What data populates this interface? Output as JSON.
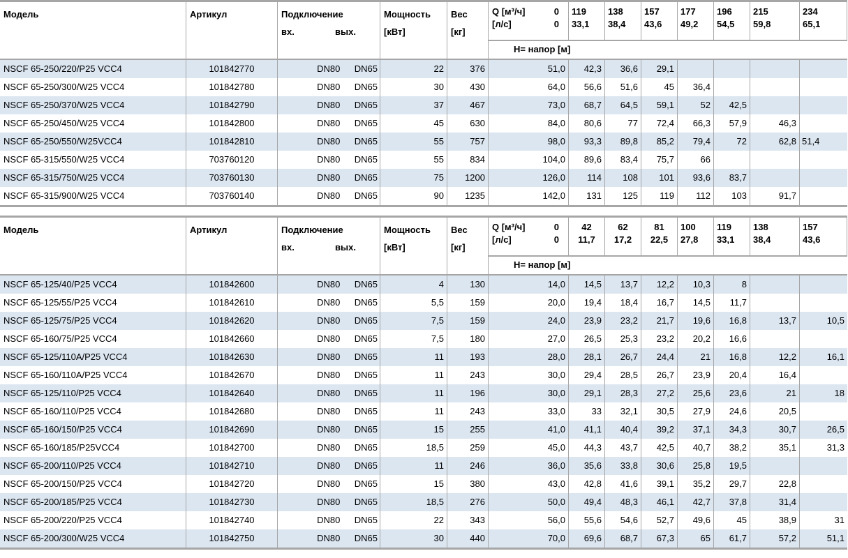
{
  "colors": {
    "row_alt_background": "#dce6f1",
    "grid_line": "#a6a6a6",
    "text": "#000000",
    "page_background": "#ffffff"
  },
  "tables": [
    {
      "header": {
        "model": "Модель",
        "article": "Артикул",
        "connection": "Подключение",
        "conn_in": "вх.",
        "conn_out": "вых.",
        "power_line1": "Мощность",
        "power_line2": "[кВт]",
        "weight_line1": "Вес",
        "weight_line2": "[кг]",
        "q_line1": "Q [м³/ч]",
        "q_line1_value": "0",
        "q_line2": "[л/с]",
        "q_line2_value": "0",
        "q_cols": [
          {
            "m3h": "119",
            "ls": "33,1"
          },
          {
            "m3h": "138",
            "ls": "38,4"
          },
          {
            "m3h": "157",
            "ls": "43,6"
          },
          {
            "m3h": "177",
            "ls": "49,2"
          },
          {
            "m3h": "196",
            "ls": "54,5"
          },
          {
            "m3h": "215",
            "ls": "59,8"
          },
          {
            "m3h": "234",
            "ls": "65,1"
          }
        ],
        "h_row_label": "Н= напор [м]"
      },
      "last_col_align": "left",
      "rows": [
        {
          "model": "NSCF 65-250/220/P25 VCC4",
          "article": "101842770",
          "dn_in": "DN80",
          "dn_out": "DN65",
          "power": "22",
          "weight": "376",
          "h": [
            "51,0",
            "42,3",
            "36,6",
            "29,1",
            "",
            "",
            "",
            ""
          ]
        },
        {
          "model": "NSCF 65-250/300/W25 VCC4",
          "article": "101842780",
          "dn_in": "DN80",
          "dn_out": "DN65",
          "power": "30",
          "weight": "430",
          "h": [
            "64,0",
            "56,6",
            "51,6",
            "45",
            "36,4",
            "",
            "",
            ""
          ]
        },
        {
          "model": "NSCF 65-250/370/W25 VCC4",
          "article": "101842790",
          "dn_in": "DN80",
          "dn_out": "DN65",
          "power": "37",
          "weight": "467",
          "h": [
            "73,0",
            "68,7",
            "64,5",
            "59,1",
            "52",
            "42,5",
            "",
            ""
          ]
        },
        {
          "model": "NSCF 65-250/450/W25 VCC4",
          "article": "101842800",
          "dn_in": "DN80",
          "dn_out": "DN65",
          "power": "45",
          "weight": "630",
          "h": [
            "84,0",
            "80,6",
            "77",
            "72,4",
            "66,3",
            "57,9",
            "46,3",
            ""
          ]
        },
        {
          "model": "NSCF 65-250/550/W25VCC4",
          "article": "101842810",
          "dn_in": "DN80",
          "dn_out": "DN65",
          "power": "55",
          "weight": "757",
          "h": [
            "98,0",
            "93,3",
            "89,8",
            "85,2",
            "79,4",
            "72",
            "62,8",
            "51,4"
          ]
        },
        {
          "model": "NSCF 65-315/550/W25 VCC4",
          "article": "703760120",
          "dn_in": "DN80",
          "dn_out": "DN65",
          "power": "55",
          "weight": "834",
          "h": [
            "104,0",
            "89,6",
            "83,4",
            "75,7",
            "66",
            "",
            "",
            ""
          ]
        },
        {
          "model": "NSCF 65-315/750/W25 VCC4",
          "article": "703760130",
          "dn_in": "DN80",
          "dn_out": "DN65",
          "power": "75",
          "weight": "1200",
          "h": [
            "126,0",
            "114",
            "108",
            "101",
            "93,6",
            "83,7",
            "",
            ""
          ]
        },
        {
          "model": "NSCF 65-315/900/W25 VCC4",
          "article": "703760140",
          "dn_in": "DN80",
          "dn_out": "DN65",
          "power": "90",
          "weight": "1235",
          "h": [
            "142,0",
            "131",
            "125",
            "119",
            "112",
            "103",
            "91,7",
            ""
          ]
        }
      ]
    },
    {
      "header": {
        "model": "Модель",
        "article": "Артикул",
        "connection": "Подключение",
        "conn_in": "вх.",
        "conn_out": "вых.",
        "power_line1": "Мощность",
        "power_line2": "[кВт]",
        "weight_line1": "Вес",
        "weight_line2": "[кг]",
        "q_line1": "Q [м³/ч]",
        "q_line1_value": "0",
        "q_line2": "[л/с]",
        "q_line2_value": "0",
        "q_cols": [
          {
            "m3h": "42",
            "ls": "11,7",
            "align": "center"
          },
          {
            "m3h": "62",
            "ls": "17,2",
            "align": "center"
          },
          {
            "m3h": "81",
            "ls": "22,5",
            "align": "center"
          },
          {
            "m3h": "100",
            "ls": "27,8"
          },
          {
            "m3h": "119",
            "ls": "33,1"
          },
          {
            "m3h": "138",
            "ls": "38,4"
          },
          {
            "m3h": "157",
            "ls": "43,6"
          }
        ],
        "h_row_label": "Н= напор [м]"
      },
      "last_col_align": "right",
      "rows": [
        {
          "model": "NSCF 65-125/40/P25 VCC4",
          "article": "101842600",
          "dn_in": "DN80",
          "dn_out": "DN65",
          "power": "4",
          "weight": "130",
          "h": [
            "14,0",
            "14,5",
            "13,7",
            "12,2",
            "10,3",
            "8",
            "",
            ""
          ]
        },
        {
          "model": "NSCF 65-125/55/P25 VCC4",
          "article": "101842610",
          "dn_in": "DN80",
          "dn_out": "DN65",
          "power": "5,5",
          "weight": "159",
          "h": [
            "20,0",
            "19,4",
            "18,4",
            "16,7",
            "14,5",
            "11,7",
            "",
            ""
          ]
        },
        {
          "model": "NSCF 65-125/75/P25 VCC4",
          "article": "101842620",
          "dn_in": "DN80",
          "dn_out": "DN65",
          "power": "7,5",
          "weight": "159",
          "h": [
            "24,0",
            "23,9",
            "23,2",
            "21,7",
            "19,6",
            "16,8",
            "13,7",
            "10,5"
          ]
        },
        {
          "model": "NSCF 65-160/75/P25 VCC4",
          "article": "101842660",
          "dn_in": "DN80",
          "dn_out": "DN65",
          "power": "7,5",
          "weight": "180",
          "h": [
            "27,0",
            "26,5",
            "25,3",
            "23,2",
            "20,2",
            "16,6",
            "",
            ""
          ]
        },
        {
          "model": "NSCF 65-125/110A/P25 VCC4",
          "article": "101842630",
          "dn_in": "DN80",
          "dn_out": "DN65",
          "power": "11",
          "weight": "193",
          "h": [
            "28,0",
            "28,1",
            "26,7",
            "24,4",
            "21",
            "16,8",
            "12,2",
            "16,1"
          ]
        },
        {
          "model": "NSCF 65-160/110A/P25 VCC4",
          "article": "101842670",
          "dn_in": "DN80",
          "dn_out": "DN65",
          "power": "11",
          "weight": "243",
          "h": [
            "30,0",
            "29,4",
            "28,5",
            "26,7",
            "23,9",
            "20,4",
            "16,4",
            ""
          ]
        },
        {
          "model": "NSCF 65-125/110/P25 VCC4",
          "article": "101842640",
          "dn_in": "DN80",
          "dn_out": "DN65",
          "power": "11",
          "weight": "196",
          "h": [
            "30,0",
            "29,1",
            "28,3",
            "27,2",
            "25,6",
            "23,6",
            "21",
            "18"
          ]
        },
        {
          "model": "NSCF 65-160/110/P25 VCC4",
          "article": "101842680",
          "dn_in": "DN80",
          "dn_out": "DN65",
          "power": "11",
          "weight": "243",
          "h": [
            "33,0",
            "33",
            "32,1",
            "30,5",
            "27,9",
            "24,6",
            "20,5",
            ""
          ]
        },
        {
          "model": "NSCF 65-160/150/P25 VCC4",
          "article": "101842690",
          "dn_in": "DN80",
          "dn_out": "DN65",
          "power": "15",
          "weight": "255",
          "h": [
            "41,0",
            "41,1",
            "40,4",
            "39,2",
            "37,1",
            "34,3",
            "30,7",
            "26,5"
          ]
        },
        {
          "model": "NSCF 65-160/185/P25VCC4",
          "article": "101842700",
          "dn_in": "DN80",
          "dn_out": "DN65",
          "power": "18,5",
          "weight": "259",
          "h": [
            "45,0",
            "44,3",
            "43,7",
            "42,5",
            "40,7",
            "38,2",
            "35,1",
            "31,3"
          ]
        },
        {
          "model": "NSCF 65-200/110/P25 VCC4",
          "article": "101842710",
          "dn_in": "DN80",
          "dn_out": "DN65",
          "power": "11",
          "weight": "246",
          "h": [
            "36,0",
            "35,6",
            "33,8",
            "30,6",
            "25,8",
            "19,5",
            "",
            ""
          ]
        },
        {
          "model": "NSCF 65-200/150/P25 VCC4",
          "article": "101842720",
          "dn_in": "DN80",
          "dn_out": "DN65",
          "power": "15",
          "weight": "380",
          "h": [
            "43,0",
            "42,8",
            "41,6",
            "39,1",
            "35,2",
            "29,7",
            "22,8",
            ""
          ]
        },
        {
          "model": "NSCF 65-200/185/P25 VCC4",
          "article": "101842730",
          "dn_in": "DN80",
          "dn_out": "DN65",
          "power": "18,5",
          "weight": "276",
          "h": [
            "50,0",
            "49,4",
            "48,3",
            "46,1",
            "42,7",
            "37,8",
            "31,4",
            ""
          ]
        },
        {
          "model": "NSCF 65-200/220/P25 VCC4",
          "article": "101842740",
          "dn_in": "DN80",
          "dn_out": "DN65",
          "power": "22",
          "weight": "343",
          "h": [
            "56,0",
            "55,6",
            "54,6",
            "52,7",
            "49,6",
            "45",
            "38,9",
            "31"
          ]
        },
        {
          "model": "NSCF 65-200/300/W25 VCC4",
          "article": "101842750",
          "dn_in": "DN80",
          "dn_out": "DN65",
          "power": "30",
          "weight": "440",
          "h": [
            "70,0",
            "69,6",
            "68,7",
            "67,3",
            "65",
            "61,7",
            "57,2",
            "51,1"
          ]
        }
      ]
    }
  ]
}
